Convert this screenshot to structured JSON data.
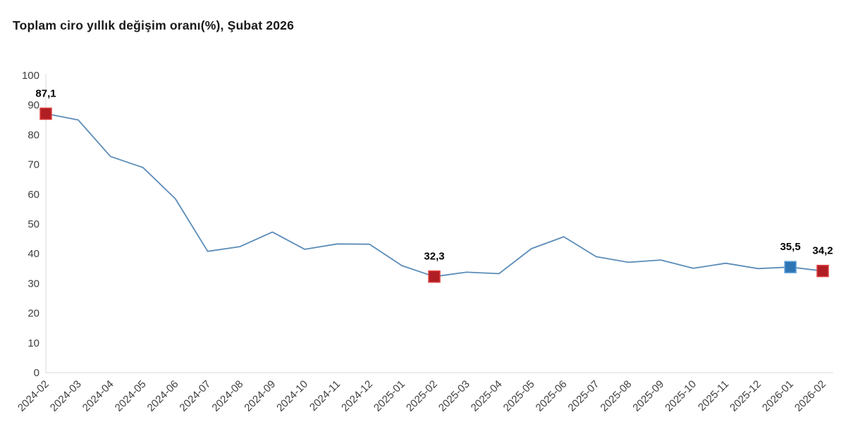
{
  "title": "Toplam ciro yıllık değişim oranı(%), Şubat 2026",
  "colors": {
    "line": "#5b8cb8",
    "axis": "#d9d9d9",
    "tick_text": "#3f3f3f",
    "data_label_text": "#000000",
    "marker_red_fill": "#b01e24",
    "marker_red_stroke": "#dd4340",
    "marker_blue_fill": "#2e75b6",
    "marker_blue_stroke": "#63a1d8"
  },
  "chart_data": {
    "type": "line",
    "title": "Toplam ciro yıllık değişim oranı(%), Şubat 2026",
    "xlabel": "",
    "ylabel": "",
    "ylim": [
      0,
      100
    ],
    "grid": false,
    "legend": "none",
    "yticks": [
      0,
      10,
      20,
      30,
      40,
      50,
      60,
      70,
      80,
      90,
      100
    ],
    "x": [
      "2024-02",
      "2024-03",
      "2024-04",
      "2024-05",
      "2024-06",
      "2024-07",
      "2024-08",
      "2024-09",
      "2024-10",
      "2024-11",
      "2024-12",
      "2025-01",
      "2025-02",
      "2025-03",
      "2025-04",
      "2025-05",
      "2025-06",
      "2025-07",
      "2025-08",
      "2025-09",
      "2025-10",
      "2025-11",
      "2025-12",
      "2026-01",
      "2026-02"
    ],
    "values": [
      87.1,
      85.0,
      72.7,
      69.0,
      58.5,
      40.8,
      42.4,
      47.3,
      41.5,
      43.3,
      43.2,
      36.0,
      32.3,
      33.8,
      33.3,
      41.7,
      45.7,
      39.0,
      37.1,
      37.9,
      35.1,
      36.8,
      35.0,
      35.5,
      34.2
    ],
    "annotated_points": [
      {
        "index": 0,
        "label": "87,1",
        "marker": "red"
      },
      {
        "index": 12,
        "label": "32,3",
        "marker": "red"
      },
      {
        "index": 23,
        "label": "35,5",
        "marker": "blue"
      },
      {
        "index": 24,
        "label": "34,2",
        "marker": "red"
      }
    ]
  }
}
